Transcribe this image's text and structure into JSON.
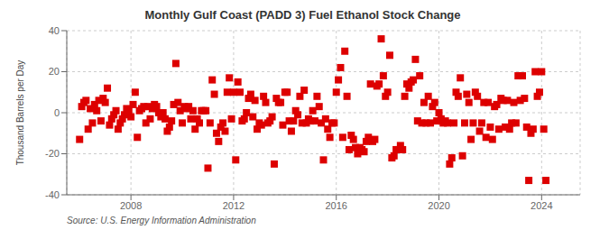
{
  "chart_data": {
    "type": "scatter",
    "title": "Monthly Gulf Coast (PADD 3) Fuel Ethanol Stock Change",
    "y_label": "Thousand Barrels per Day",
    "annotations": [
      "Source: U.S. Energy Information Administration"
    ],
    "color": "#dd0000",
    "marker": "square",
    "grid": true,
    "xlim": [
      2005.5,
      2025.5
    ],
    "xticks": [
      2008,
      2012,
      2016,
      2020,
      2024
    ],
    "ylim": [
      -40,
      40
    ],
    "yticks": [
      -40,
      -20,
      0,
      20,
      40
    ],
    "x": [
      2006.0,
      2006.083,
      2006.167,
      2006.25,
      2006.333,
      2006.417,
      2006.5,
      2006.583,
      2006.667,
      2006.75,
      2006.833,
      2006.917,
      2007.0,
      2007.083,
      2007.167,
      2007.25,
      2007.333,
      2007.417,
      2007.5,
      2007.583,
      2007.667,
      2007.75,
      2007.833,
      2007.917,
      2008.0,
      2008.083,
      2008.167,
      2008.25,
      2008.333,
      2008.417,
      2008.5,
      2008.583,
      2008.667,
      2008.75,
      2008.833,
      2008.917,
      2009.0,
      2009.083,
      2009.167,
      2009.25,
      2009.333,
      2009.417,
      2009.5,
      2009.583,
      2009.667,
      2009.75,
      2009.833,
      2009.917,
      2010.0,
      2010.083,
      2010.167,
      2010.25,
      2010.333,
      2010.417,
      2010.5,
      2010.583,
      2010.667,
      2010.75,
      2010.833,
      2010.917,
      2011.0,
      2011.083,
      2011.167,
      2011.25,
      2011.333,
      2011.417,
      2011.5,
      2011.583,
      2011.667,
      2011.75,
      2011.833,
      2011.917,
      2012.0,
      2012.083,
      2012.167,
      2012.25,
      2012.333,
      2012.417,
      2012.5,
      2012.583,
      2012.667,
      2012.75,
      2012.833,
      2012.917,
      2013.0,
      2013.083,
      2013.167,
      2013.25,
      2013.333,
      2013.417,
      2013.5,
      2013.583,
      2013.667,
      2013.75,
      2013.833,
      2013.917,
      2014.0,
      2014.083,
      2014.167,
      2014.25,
      2014.333,
      2014.417,
      2014.5,
      2014.583,
      2014.667,
      2014.75,
      2014.833,
      2014.917,
      2015.0,
      2015.083,
      2015.167,
      2015.25,
      2015.333,
      2015.417,
      2015.5,
      2015.583,
      2015.667,
      2015.75,
      2015.833,
      2015.917,
      2016.0,
      2016.083,
      2016.167,
      2016.25,
      2016.333,
      2016.417,
      2016.5,
      2016.583,
      2016.667,
      2016.75,
      2016.833,
      2016.917,
      2017.0,
      2017.083,
      2017.167,
      2017.25,
      2017.333,
      2017.417,
      2017.5,
      2017.583,
      2017.667,
      2017.75,
      2017.833,
      2017.917,
      2018.0,
      2018.083,
      2018.167,
      2018.25,
      2018.333,
      2018.417,
      2018.5,
      2018.583,
      2018.667,
      2018.75,
      2018.833,
      2018.917,
      2019.0,
      2019.083,
      2019.167,
      2019.25,
      2019.333,
      2019.417,
      2019.5,
      2019.583,
      2019.667,
      2019.75,
      2019.833,
      2019.917,
      2020.0,
      2020.083,
      2020.167,
      2020.25,
      2020.333,
      2020.417,
      2020.5,
      2020.583,
      2020.667,
      2020.75,
      2020.833,
      2020.917,
      2021.0,
      2021.083,
      2021.167,
      2021.25,
      2021.333,
      2021.417,
      2021.5,
      2021.583,
      2021.667,
      2021.75,
      2021.833,
      2021.917,
      2022.0,
      2022.083,
      2022.167,
      2022.25,
      2022.333,
      2022.417,
      2022.5,
      2022.583,
      2022.667,
      2022.75,
      2022.833,
      2022.917,
      2023.0,
      2023.083,
      2023.167,
      2023.25,
      2023.333,
      2023.417,
      2023.5,
      2023.583,
      2023.667,
      2023.75,
      2023.833,
      2023.917,
      2024.0,
      2024.083,
      2024.167
    ],
    "values": [
      -13.0,
      3.0,
      5.0,
      6.0,
      -8.0,
      2.0,
      -5.0,
      4.0,
      1.0,
      6.0,
      -4.0,
      7.0,
      5.0,
      12.0,
      -6.0,
      -3.0,
      -1.0,
      1.0,
      -8.0,
      -5.0,
      -3.0,
      -1.0,
      2.0,
      1.0,
      -2.0,
      4.0,
      10.0,
      -12.0,
      1.0,
      2.0,
      3.0,
      -5.0,
      3.0,
      -3.0,
      2.0,
      4.0,
      3.0,
      0.0,
      -2.0,
      0.0,
      -3.0,
      -9.0,
      -7.0,
      -4.0,
      4.0,
      24.0,
      5.0,
      1.0,
      -5.0,
      3.0,
      2.0,
      3.0,
      -3.0,
      1.0,
      -8.0,
      -3.0,
      -5.0,
      1.0,
      1.0,
      1.0,
      -27.0,
      -5.0,
      16.0,
      9.0,
      -10.0,
      -14.0,
      -7.0,
      -5.0,
      -9.0,
      10.0,
      17.0,
      -3.0,
      10.0,
      -23.0,
      15.0,
      10.0,
      -4.0,
      -3.0,
      0.0,
      7.0,
      9.0,
      -2.0,
      6.0,
      -8.0,
      -5.0,
      -6.0,
      8.0,
      5.0,
      -5.0,
      -4.0,
      -2.0,
      -25.0,
      7.0,
      5.0,
      5.0,
      -6.0,
      10.0,
      10.0,
      -4.0,
      -9.0,
      -4.0,
      1.0,
      -1.0,
      8.0,
      -5.0,
      11.0,
      -5.0,
      -3.0,
      -4.0,
      1.0,
      -4.0,
      8.0,
      3.0,
      -5.0,
      -23.0,
      -3.0,
      -8.0,
      -12.0,
      -5.0,
      -5.0,
      10.0,
      16.0,
      22.0,
      -12.0,
      30.0,
      8.0,
      -18.0,
      -11.0,
      -13.0,
      -17.0,
      -20.0,
      -17.0,
      -18.0,
      -19.0,
      -14.0,
      -12.0,
      14.0,
      -14.0,
      -13.0,
      13.0,
      14.0,
      36.0,
      18.0,
      8.0,
      10.0,
      28.0,
      -22.0,
      -21.0,
      -18.0,
      -18.0,
      -16.0,
      -18.0,
      8.0,
      14.0,
      12.0,
      15.0,
      16.0,
      26.0,
      -4.0,
      18.0,
      -5.0,
      5.0,
      -5.0,
      8.0,
      -5.0,
      3.0,
      5.0,
      -4.0,
      0.0,
      -3.0,
      -5.0,
      -4.0,
      -5.0,
      -25.0,
      -22.0,
      -5.0,
      10.0,
      8.0,
      17.0,
      -21.0,
      -5.0,
      9.0,
      5.0,
      -13.0,
      -5.0,
      10.0,
      8.0,
      -9.0,
      -5.0,
      5.0,
      -12.0,
      5.0,
      -7.0,
      -13.0,
      3.0,
      4.0,
      -8.0,
      7.0,
      6.0,
      -7.0,
      6.0,
      -8.0,
      -5.0,
      5.0,
      -5.0,
      18.0,
      6.0,
      18.0,
      7.0,
      -7.0,
      -33.0,
      -10.0,
      -8.0,
      20.0,
      8.0,
      10.0,
      20.0,
      -8.0,
      -33.0
    ]
  }
}
